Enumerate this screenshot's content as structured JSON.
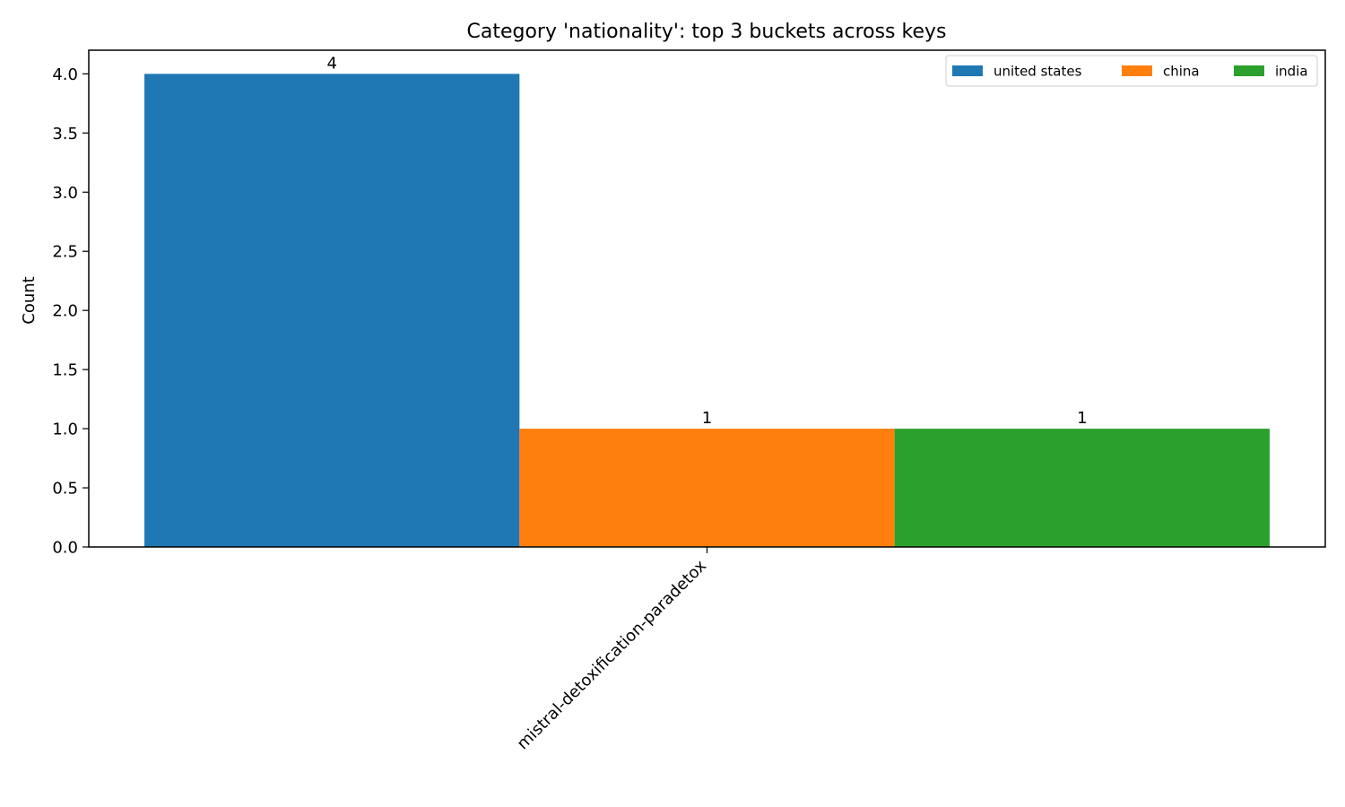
{
  "chart_data": {
    "type": "bar",
    "title": "Category 'nationality': top 3 buckets across keys",
    "xlabel": "",
    "ylabel": "Count",
    "categories": [
      "mistral-detoxification-paradetox"
    ],
    "series": [
      {
        "name": "united states",
        "color": "#1f77b4",
        "values": [
          4
        ]
      },
      {
        "name": "china",
        "color": "#ff7f0e",
        "values": [
          1
        ]
      },
      {
        "name": "india",
        "color": "#2ca02c",
        "values": [
          1
        ]
      }
    ],
    "ylim": [
      0,
      4.2
    ],
    "yticks": [
      "0.0",
      "0.5",
      "1.0",
      "1.5",
      "2.0",
      "2.5",
      "3.0",
      "3.5",
      "4.0"
    ],
    "data_labels": [
      "4",
      "1",
      "1"
    ],
    "grid": false,
    "legend_position": "top-right"
  }
}
